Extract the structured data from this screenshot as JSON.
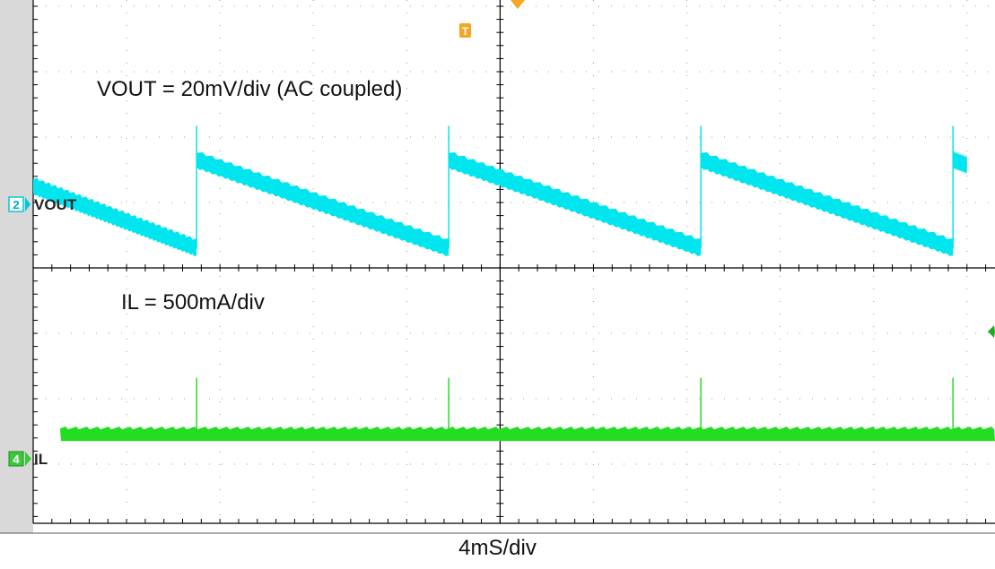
{
  "chart_data": {
    "type": "line",
    "title": "",
    "annotations": {
      "vout_scale": "VOUT = 20mV/div (AC coupled)",
      "il_scale": "IL = 500mA/div",
      "time_scale": "4mS/div"
    },
    "channels": [
      {
        "number": "2",
        "name": "VOUT",
        "color": "#00e5ee"
      },
      {
        "number": "4",
        "name": "IL",
        "color": "#22dd22"
      }
    ],
    "trigger_marker": "T",
    "grid": {
      "x_divisions": 10,
      "y_divisions": 8,
      "on": true
    },
    "xlim_div": [
      0,
      10
    ],
    "ylim_div": [
      -4,
      4
    ],
    "series": [
      {
        "name": "VOUT",
        "x_div": [
          0,
          1.75,
          1.75,
          4.45,
          4.45,
          7.15,
          7.15,
          9.85,
          9.85,
          10
        ],
        "y_div": [
          1.25,
          0.3,
          1.65,
          0.3,
          1.65,
          0.3,
          1.65,
          0.3,
          1.65,
          1.57
        ]
      },
      {
        "name": "IL",
        "baseline_div": -2.55,
        "spike_x_div": [
          1.75,
          4.45,
          7.15,
          9.85
        ],
        "spike_peak_div": -1.2
      }
    ]
  }
}
